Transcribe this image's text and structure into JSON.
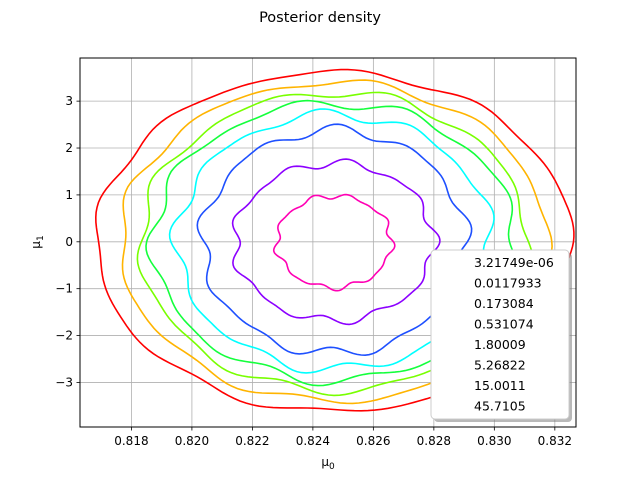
{
  "chart_data": {
    "type": "contour",
    "title": "Posterior density",
    "xlabel": "μ0",
    "ylabel": "μ1",
    "xlim": [
      0.8163,
      0.8327
    ],
    "ylim": [
      -3.95,
      3.92
    ],
    "x_ticks": [
      0.818,
      0.82,
      0.822,
      0.824,
      0.826,
      0.828,
      0.83,
      0.832
    ],
    "x_tick_labels": [
      "0.818",
      "0.820",
      "0.822",
      "0.824",
      "0.826",
      "0.828",
      "0.830",
      "0.832"
    ],
    "y_ticks": [
      -3,
      -2,
      -1,
      0,
      1,
      2,
      3
    ],
    "y_tick_labels": [
      "−3",
      "−2",
      "−1",
      "0",
      "1",
      "2",
      "3"
    ],
    "grid": true,
    "legend_placement": "lower-right",
    "center": [
      0.8247,
      0.0
    ],
    "levels": [
      {
        "label": "3.21749e-06",
        "color": "#ff0000",
        "rx": 0.00785,
        "ry": 3.62
      },
      {
        "label": "0.0117933",
        "color": "#ffb400",
        "rx": 0.00705,
        "ry": 3.4
      },
      {
        "label": "0.173084",
        "color": "#78ff00",
        "rx": 0.0064,
        "ry": 3.18
      },
      {
        "label": "0.531074",
        "color": "#14ff3c",
        "rx": 0.006,
        "ry": 2.96
      },
      {
        "label": "1.80009",
        "color": "#00ffff",
        "rx": 0.0052,
        "ry": 2.72
      },
      {
        "label": "5.26822",
        "color": "#1e50ff",
        "rx": 0.00435,
        "ry": 2.38
      },
      {
        "label": "15.0011",
        "color": "#8c00ff",
        "rx": 0.0033,
        "ry": 1.68
      },
      {
        "label": "45.7105",
        "color": "#ff00b4",
        "rx": 0.0019,
        "ry": 0.98
      }
    ]
  }
}
